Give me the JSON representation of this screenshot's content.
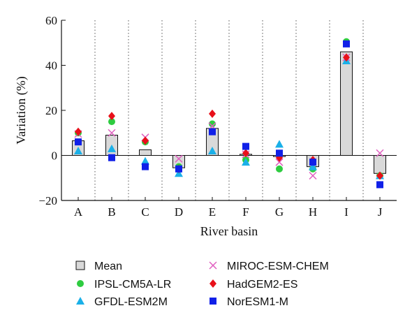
{
  "chart_data": {
    "type": "bar",
    "title": "",
    "xlabel": "River basin",
    "ylabel": "Variation (%)",
    "ylim": [
      -20,
      60
    ],
    "yticks": [
      -20,
      0,
      20,
      40,
      60
    ],
    "grid": "vertical dotted separators between categories",
    "categories": [
      "A",
      "B",
      "C",
      "D",
      "E",
      "F",
      "G",
      "H",
      "I",
      "J"
    ],
    "bar_series": {
      "name": "Mean",
      "color": "#d9d9d9",
      "values": [
        6.5,
        9,
        2.5,
        -5.5,
        12,
        0.5,
        -0.5,
        -5,
        46,
        -8
      ]
    },
    "series": [
      {
        "name": "IPSL-CM5A-LR",
        "marker": "circle",
        "color": "#2ecc40",
        "values": [
          10,
          15,
          6,
          -5,
          14,
          -2,
          -6,
          -6,
          50.5,
          -9
        ]
      },
      {
        "name": "GFDL-ESM2M",
        "marker": "triangle",
        "color": "#1ab0e8",
        "values": [
          2,
          3,
          -2.5,
          -8,
          2,
          -3,
          5,
          -5,
          42,
          -9
        ]
      },
      {
        "name": "MIROC-ESM-CHEM",
        "marker": "x",
        "color": "#e060c0",
        "values": [
          9.5,
          10,
          8,
          -1.5,
          13,
          0.5,
          -3,
          -9,
          43.5,
          1
        ]
      },
      {
        "name": "HadGEM2-ES",
        "marker": "diamond",
        "color": "#e8101a",
        "values": [
          10.5,
          17.5,
          6.5,
          -6,
          18.5,
          1,
          -1,
          -2,
          43.5,
          -9
        ]
      },
      {
        "name": "NorESM1-M",
        "marker": "square",
        "color": "#1020e8",
        "values": [
          6,
          -1,
          -5,
          -6,
          10.5,
          4,
          1,
          -3,
          49.5,
          -13
        ]
      }
    ],
    "legend_order": [
      "Mean",
      "MIROC-ESM-CHEM",
      "IPSL-CM5A-LR",
      "HadGEM2-ES",
      "GFDL-ESM2M",
      "NorESM1-M"
    ],
    "legend_placement": "bottom, two columns"
  }
}
